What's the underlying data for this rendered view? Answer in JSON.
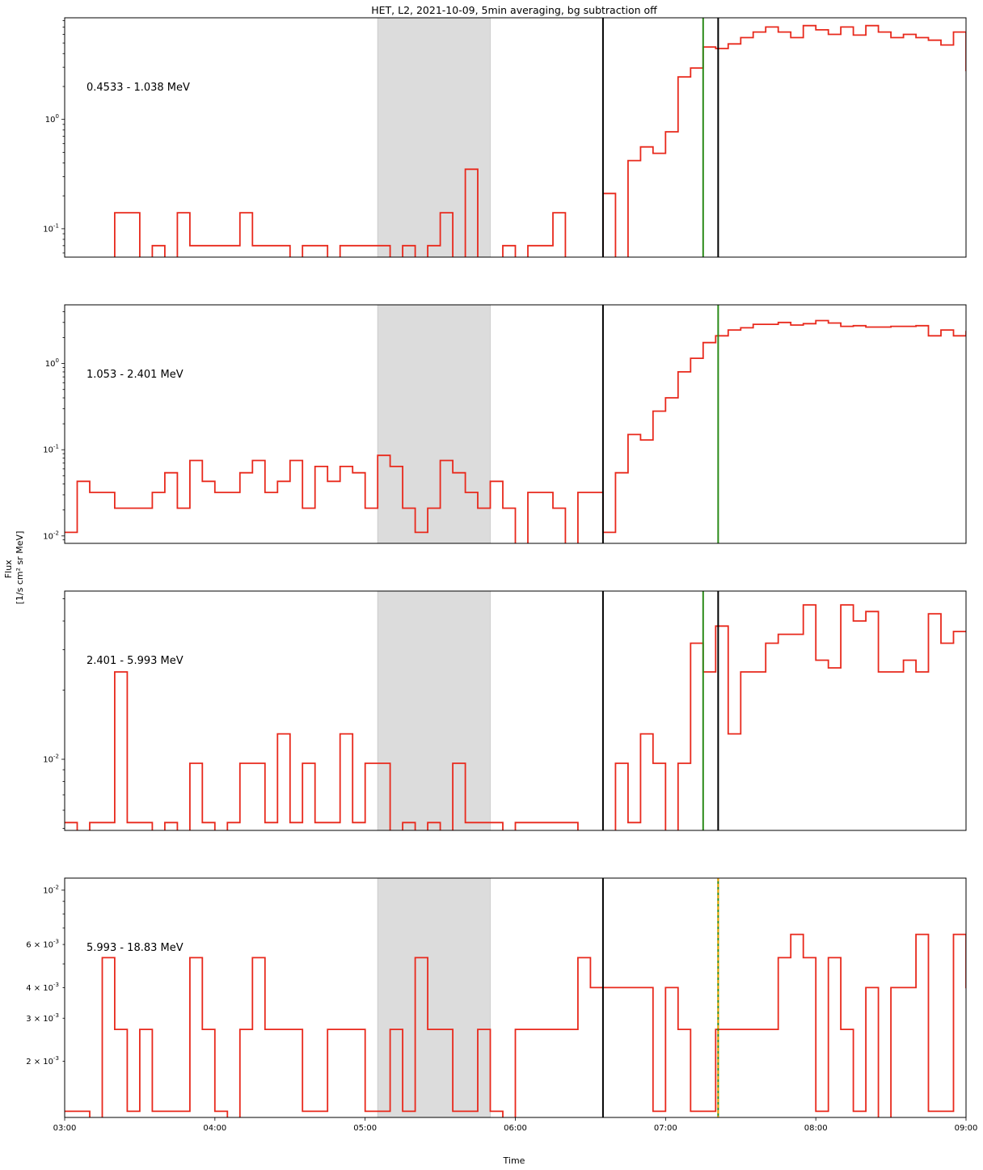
{
  "title": "HET, L2, 2021-10-09, 5min averaging, bg subtraction off",
  "xlabel": "Time",
  "ylabel_line1": "Flux",
  "ylabel_line2": "[1/s cm² sr MeV]",
  "x_ticks": [
    "03:00",
    "04:00",
    "05:00",
    "06:00",
    "07:00",
    "08:00",
    "09:00"
  ],
  "colors": {
    "flux": "#e8291c",
    "onset": "#000000",
    "peak": "#2a8a18",
    "marker_dashed": "#f5a300",
    "background_window": "#dcdcdc"
  },
  "chart_data": [
    {
      "type": "line",
      "channel": "0.4533 - 1.038 MeV",
      "yscale": "log",
      "ylim": [
        0.055,
        8.5
      ],
      "y_ticks": [
        {
          "value": 0.1,
          "label": "10^-1"
        },
        {
          "value": 1,
          "label": "10^0"
        }
      ],
      "x_start_hours": 3.0,
      "bin_minutes": 5,
      "values": [
        0.04,
        0.04,
        0.04,
        0.04,
        0.14,
        0.14,
        0.04,
        0.07,
        0.04,
        0.14,
        0.07,
        0.07,
        0.07,
        0.07,
        0.14,
        0.07,
        0.07,
        0.07,
        0.04,
        0.07,
        0.07,
        0.04,
        0.07,
        0.07,
        0.07,
        0.07,
        0.04,
        0.07,
        0.04,
        0.07,
        0.14,
        0.04,
        0.35,
        0.04,
        0.04,
        0.07,
        0.04,
        0.07,
        0.07,
        0.14,
        0.04,
        0.04,
        0.04,
        0.21,
        0.04,
        0.42,
        0.56,
        0.49,
        0.77,
        2.45,
        2.95,
        4.6,
        4.45,
        4.9,
        5.6,
        6.3,
        7.0,
        6.3,
        5.6,
        7.2,
        6.6,
        6.0,
        7.0,
        5.9,
        7.2,
        6.3,
        5.6,
        6.0,
        5.6,
        5.3,
        4.8,
        6.3,
        2.8
      ],
      "background_window": [
        "05:05",
        "05:50"
      ],
      "vlines": [
        {
          "time": "06:35",
          "kind": "onset"
        },
        {
          "time": "07:15",
          "kind": "peak"
        },
        {
          "time": "07:21",
          "kind": "onset"
        }
      ]
    },
    {
      "type": "line",
      "channel": "1.053 - 2.401 MeV",
      "yscale": "log",
      "ylim": [
        0.0082,
        4.8
      ],
      "y_ticks": [
        {
          "value": 0.01,
          "label": "10^-2"
        },
        {
          "value": 0.1,
          "label": "10^-1"
        },
        {
          "value": 1,
          "label": "10^0"
        }
      ],
      "x_start_hours": 3.0,
      "bin_minutes": 5,
      "values": [
        0.011,
        0.043,
        0.032,
        0.032,
        0.021,
        0.021,
        0.021,
        0.032,
        0.054,
        0.021,
        0.075,
        0.043,
        0.032,
        0.032,
        0.054,
        0.075,
        0.032,
        0.043,
        0.075,
        0.021,
        0.064,
        0.043,
        0.064,
        0.054,
        0.021,
        0.086,
        0.064,
        0.021,
        0.011,
        0.021,
        0.075,
        0.054,
        0.032,
        0.021,
        0.043,
        0.021,
        0.006,
        0.032,
        0.032,
        0.021,
        0.006,
        0.032,
        0.032,
        0.011,
        0.054,
        0.15,
        0.13,
        0.28,
        0.4,
        0.8,
        1.15,
        1.75,
        2.1,
        2.45,
        2.6,
        2.85,
        2.85,
        3.0,
        2.8,
        2.9,
        3.15,
        2.95,
        2.7,
        2.75,
        2.65,
        2.65,
        2.7,
        2.7,
        2.75,
        2.1,
        2.45,
        2.1,
        2.35,
        2.1
      ],
      "background_window": [
        "05:05",
        "05:50"
      ],
      "vlines": [
        {
          "time": "06:35",
          "kind": "onset"
        },
        {
          "time": "07:21",
          "kind": "peak"
        }
      ]
    },
    {
      "type": "line",
      "channel": "2.401 - 5.993 MeV",
      "yscale": "log",
      "ylim": [
        0.0049,
        0.054
      ],
      "y_ticks": [
        {
          "value": 0.01,
          "label": "10^-2"
        }
      ],
      "x_start_hours": 3.0,
      "bin_minutes": 5,
      "values": [
        0.0053,
        0.003,
        0.0053,
        0.0053,
        0.024,
        0.0053,
        0.0053,
        0.003,
        0.0053,
        0.003,
        0.0096,
        0.0053,
        0.003,
        0.0053,
        0.0096,
        0.0096,
        0.0053,
        0.0129,
        0.0053,
        0.0096,
        0.0053,
        0.0053,
        0.0129,
        0.0053,
        0.0096,
        0.0096,
        0.003,
        0.0053,
        0.003,
        0.0053,
        0.003,
        0.0096,
        0.0053,
        0.0053,
        0.0053,
        0.003,
        0.0053,
        0.0053,
        0.0053,
        0.0053,
        0.0053,
        0.003,
        0.003,
        0.003,
        0.0096,
        0.0053,
        0.0129,
        0.0096,
        0.003,
        0.0096,
        0.032,
        0.024,
        0.038,
        0.0129,
        0.024,
        0.024,
        0.032,
        0.035,
        0.035,
        0.047,
        0.027,
        0.025,
        0.047,
        0.04,
        0.044,
        0.024,
        0.024,
        0.027,
        0.024,
        0.043,
        0.032,
        0.036
      ],
      "background_window": [
        "05:05",
        "05:50"
      ],
      "vlines": [
        {
          "time": "06:35",
          "kind": "onset"
        },
        {
          "time": "07:15",
          "kind": "peak"
        },
        {
          "time": "07:21",
          "kind": "onset"
        }
      ]
    },
    {
      "type": "line",
      "channel": "5.993 - 18.83 MeV",
      "yscale": "log",
      "ylim": [
        0.00118,
        0.0112
      ],
      "y_ticks": [
        {
          "value": 0.002,
          "label": "2 × 10^-3"
        },
        {
          "value": 0.003,
          "label": "3 × 10^-3"
        },
        {
          "value": 0.004,
          "label": "4 × 10^-3"
        },
        {
          "value": 0.006,
          "label": "6 × 10^-3"
        },
        {
          "value": 0.01,
          "label": "10^-2"
        }
      ],
      "x_start_hours": 3.0,
      "bin_minutes": 5,
      "values": [
        0.00125,
        0.00125,
        0.0008,
        0.0053,
        0.0027,
        0.00125,
        0.0027,
        0.00125,
        0.00125,
        0.00125,
        0.0053,
        0.0027,
        0.00125,
        0.0008,
        0.0027,
        0.0053,
        0.0027,
        0.0027,
        0.0027,
        0.00125,
        0.00125,
        0.0027,
        0.0027,
        0.0027,
        0.00125,
        0.00125,
        0.0027,
        0.00125,
        0.0053,
        0.0027,
        0.0027,
        0.00125,
        0.00125,
        0.0027,
        0.00125,
        0.0008,
        0.0027,
        0.0027,
        0.0027,
        0.0027,
        0.0027,
        0.0053,
        0.004,
        0.004,
        0.004,
        0.004,
        0.004,
        0.00125,
        0.004,
        0.0027,
        0.00125,
        0.00125,
        0.0027,
        0.0027,
        0.0027,
        0.0027,
        0.0027,
        0.0053,
        0.0066,
        0.0053,
        0.00125,
        0.0053,
        0.0027,
        0.00125,
        0.004,
        0.0008,
        0.004,
        0.004,
        0.0066,
        0.00125,
        0.00125,
        0.0066,
        0.004,
        0.0066,
        0.0013,
        0.0066,
        0.0105,
        0.0105
      ],
      "background_window": [
        "05:05",
        "05:50"
      ],
      "vlines": [
        {
          "time": "06:35",
          "kind": "onset"
        },
        {
          "time": "07:21",
          "kind": "peak"
        },
        {
          "time": "07:21",
          "kind": "marker_dashed"
        }
      ]
    }
  ]
}
